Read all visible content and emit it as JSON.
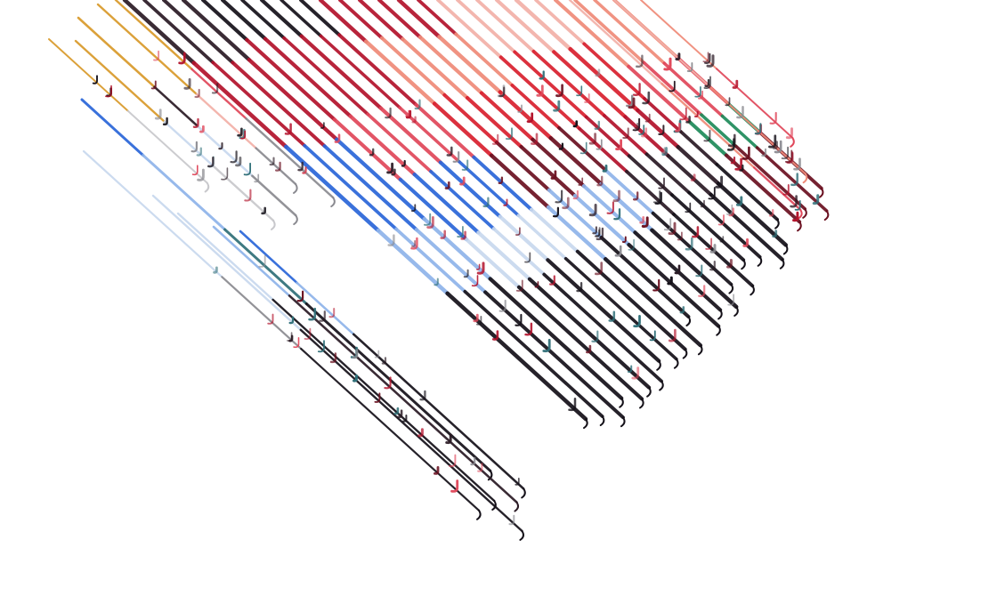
{
  "artwork": {
    "subject": "diagonal-stroke-artwork",
    "palette": {
      "black": "#141018",
      "dark": "#2a1a24",
      "crimson": "#b3122b",
      "red": "#d8202e",
      "rose": "#e0475a",
      "salmon": "#ef8a78",
      "pink": "#f2b0a8",
      "burgundy": "#6a1020",
      "blue": "#2a66d8",
      "skyblue": "#8fb4ea",
      "paleblue": "#c8d8ee",
      "gold": "#d99a2a",
      "green": "#1e8a5a",
      "teal": "#2f6f78",
      "gray": "#8a8a90",
      "lightgray": "#c8c8cc",
      "background": "#ffffff"
    }
  }
}
